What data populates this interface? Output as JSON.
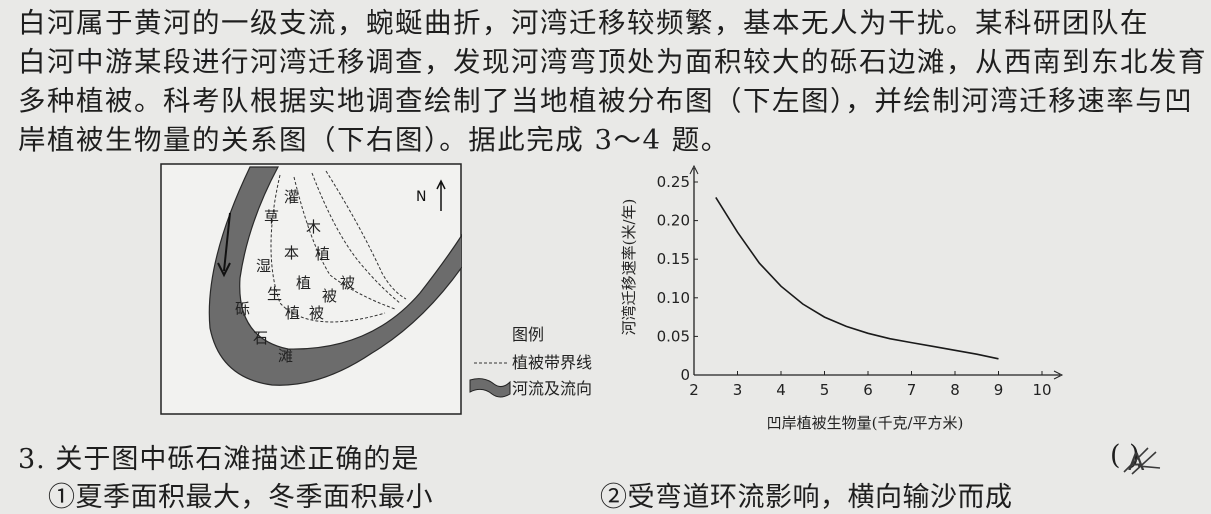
{
  "intro": {
    "lines": [
      "白河属于黄河的一级支流，蜿蜒曲折，河湾迁移较频繁，基本无人为干扰。某科研团队在",
      "白河中游某段进行河湾迁移调查，发现河湾弯顶处为面积较大的砾石边滩，从西南到东北发育",
      "多种植被。科考队根据实地调查绘制了当地植被分布图（下左图），并绘制河湾迁移速率与凹",
      "岸植被生物量的关系图（下右图）。据此完成 3～4 题。"
    ]
  },
  "map": {
    "north_label": "N",
    "labels": {
      "shrub": [
        "灌",
        "木",
        "植",
        "被"
      ],
      "herb": [
        "草",
        "本",
        "植",
        "被"
      ],
      "wet": [
        "湿",
        "生",
        "植",
        "被"
      ],
      "gravel": [
        "砾",
        "石",
        "滩"
      ]
    }
  },
  "legend": {
    "title": "图例",
    "boundary": "植被带界线",
    "river": "河流及流向"
  },
  "chart_data": {
    "type": "line",
    "xlabel": "凹岸植被生物量(千克/平方米)",
    "ylabel": "河湾迁移速率(米/年)",
    "xlim": [
      2,
      10
    ],
    "ylim": [
      0,
      0.25
    ],
    "x_ticks": [
      "2",
      "3",
      "4",
      "5",
      "6",
      "7",
      "8",
      "9",
      "10"
    ],
    "y_ticks": [
      "0",
      "0.05",
      "0.10",
      "0.15",
      "0.20",
      "0.25"
    ],
    "x": [
      2.5,
      3,
      3.5,
      4,
      4.5,
      5,
      5.5,
      6,
      6.5,
      7,
      7.5,
      8,
      8.5,
      9
    ],
    "y": [
      0.23,
      0.185,
      0.145,
      0.115,
      0.092,
      0.075,
      0.063,
      0.054,
      0.047,
      0.042,
      0.037,
      0.032,
      0.027,
      0.021
    ]
  },
  "question": {
    "text": "3. 关于图中砾石滩描述正确的是",
    "paren": "(          )",
    "stamp": "A",
    "options": [
      "①夏季面积最大，冬季面积最小",
      "②受弯道环流影响，横向输沙而成"
    ]
  }
}
